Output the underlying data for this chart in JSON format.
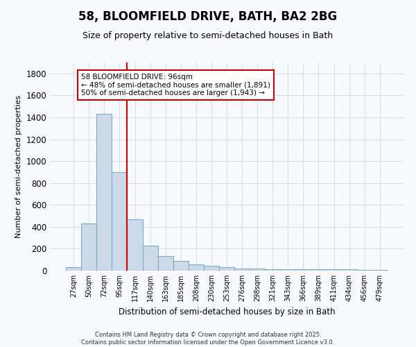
{
  "title": "58, BLOOMFIELD DRIVE, BATH, BA2 2BG",
  "subtitle": "Size of property relative to semi-detached houses in Bath",
  "xlabel": "Distribution of semi-detached houses by size in Bath",
  "ylabel": "Number of semi-detached properties",
  "bar_labels": [
    "27sqm",
    "50sqm",
    "72sqm",
    "95sqm",
    "117sqm",
    "140sqm",
    "163sqm",
    "185sqm",
    "208sqm",
    "230sqm",
    "253sqm",
    "276sqm",
    "298sqm",
    "321sqm",
    "343sqm",
    "366sqm",
    "389sqm",
    "411sqm",
    "434sqm",
    "456sqm",
    "479sqm"
  ],
  "bar_values": [
    30,
    430,
    1430,
    900,
    470,
    225,
    135,
    90,
    60,
    45,
    30,
    20,
    20,
    15,
    15,
    10,
    15,
    10,
    15,
    5,
    5
  ],
  "bar_color": "#ccd9e8",
  "bar_edge_color": "#7aaec8",
  "ylim": [
    0,
    1900
  ],
  "yticks": [
    0,
    200,
    400,
    600,
    800,
    1000,
    1200,
    1400,
    1600,
    1800
  ],
  "vline_color": "#cc0000",
  "vline_x": 3.5,
  "annotation_title": "58 BLOOMFIELD DRIVE: 96sqm",
  "annotation_line1": "← 48% of semi-detached houses are smaller (1,891)",
  "annotation_line2": "50% of semi-detached houses are larger (1,943) →",
  "annotation_box_color": "#cc0000",
  "footer_line1": "Contains HM Land Registry data © Crown copyright and database right 2025.",
  "footer_line2": "Contains public sector information licensed under the Open Government Licence v3.0.",
  "background_color": "#f7f9fc",
  "grid_color": "#d4dfe8",
  "title_fontsize": 12,
  "subtitle_fontsize": 9
}
